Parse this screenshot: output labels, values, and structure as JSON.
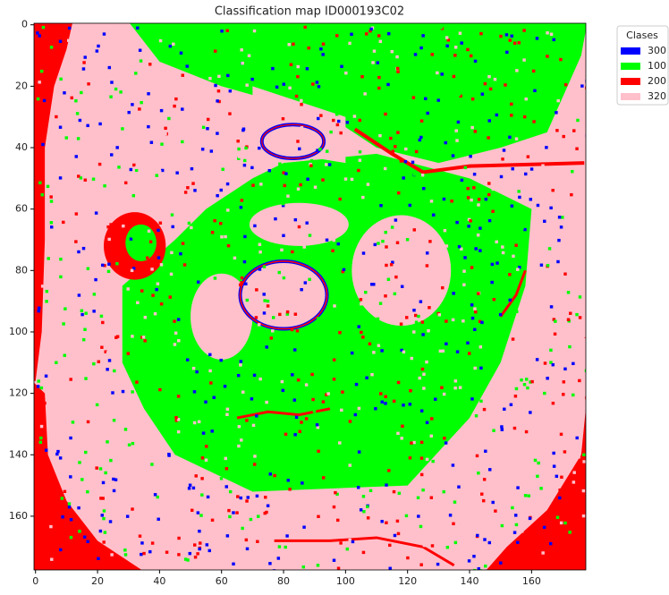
{
  "chart_data": {
    "type": "classmap",
    "title": "Classification map ID000193C02",
    "xlim": [
      -0.5,
      177.5
    ],
    "ylim": [
      177.5,
      -0.5
    ],
    "xticks": [
      0,
      20,
      40,
      60,
      80,
      100,
      120,
      140,
      160
    ],
    "yticks": [
      0,
      20,
      40,
      60,
      80,
      100,
      120,
      140,
      160
    ],
    "legend": {
      "title": "Clases",
      "position": "outside upper right",
      "entries": [
        {
          "name": "300",
          "color": "#0000ff"
        },
        {
          "name": "100",
          "color": "#00ff00"
        },
        {
          "name": "200",
          "color": "#ff0000"
        },
        {
          "name": "320",
          "color": "#ffc0cb"
        }
      ]
    }
  }
}
